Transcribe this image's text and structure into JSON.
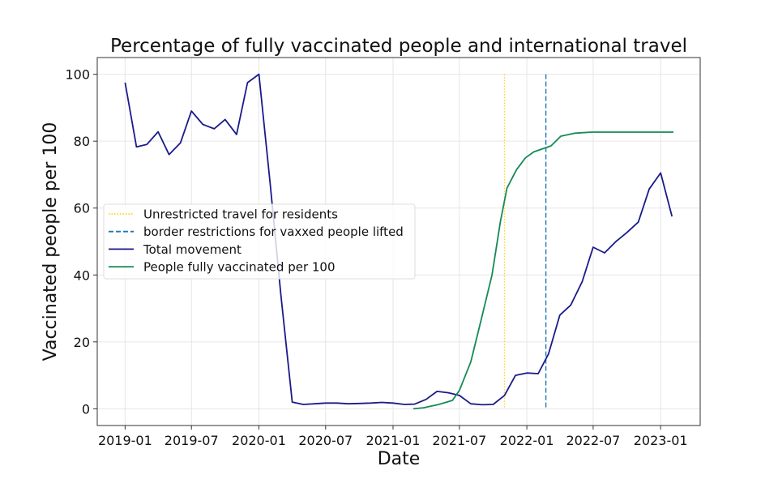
{
  "chart_data": {
    "type": "line",
    "title": "Percentage of fully vaccinated people and international travel",
    "xlabel": "Date",
    "ylabel": "Vaccinated people per 100",
    "xlim": [
      "2018-10-17",
      "2023-04-19"
    ],
    "ylim": [
      -5,
      105
    ],
    "grid": true,
    "legend_position": "center-left",
    "x_ticks": [
      "2019-01",
      "2019-07",
      "2020-01",
      "2020-07",
      "2021-01",
      "2021-07",
      "2022-01",
      "2022-07",
      "2023-01"
    ],
    "y_ticks": [
      0,
      20,
      40,
      60,
      80,
      100
    ],
    "vlines": [
      {
        "name": "Unrestricted travel for residents",
        "x": "2021-11-01",
        "color": "#ffd21f",
        "style": "dotted"
      },
      {
        "name": "border restrictions for vaxxed people lifted",
        "x": "2022-02-22",
        "color": "#1f77b4",
        "style": "dashed"
      }
    ],
    "series": [
      {
        "name": "Total movement",
        "color": "#1a1a8c",
        "x": [
          "2019-01-01",
          "2019-02-01",
          "2019-03-01",
          "2019-04-01",
          "2019-05-01",
          "2019-06-01",
          "2019-07-01",
          "2019-08-01",
          "2019-09-01",
          "2019-10-01",
          "2019-11-01",
          "2019-12-01",
          "2020-01-01",
          "2020-02-01",
          "2020-03-01",
          "2020-04-01",
          "2020-05-01",
          "2020-06-01",
          "2020-07-01",
          "2020-08-01",
          "2020-09-01",
          "2020-10-01",
          "2020-11-01",
          "2020-12-01",
          "2021-01-01",
          "2021-02-01",
          "2021-03-01",
          "2021-04-01",
          "2021-05-01",
          "2021-06-01",
          "2021-07-01",
          "2021-08-01",
          "2021-09-01",
          "2021-10-01",
          "2021-11-01",
          "2021-12-01",
          "2022-01-01",
          "2022-02-01",
          "2022-03-01",
          "2022-04-01",
          "2022-05-01",
          "2022-06-01",
          "2022-07-01",
          "2022-08-01",
          "2022-09-01",
          "2022-10-01",
          "2022-11-01",
          "2022-12-01",
          "2023-01-01",
          "2023-02-01"
        ],
        "y": [
          97.5,
          78.3,
          79,
          82.8,
          76,
          79.5,
          89,
          85,
          83.7,
          86.5,
          82,
          97.5,
          100,
          67,
          34,
          2,
          1.3,
          1.5,
          1.7,
          1.7,
          1.5,
          1.6,
          1.7,
          1.9,
          1.7,
          1.3,
          1.4,
          2.8,
          5.2,
          4.8,
          4.0,
          1.5,
          1.2,
          1.3,
          4.0,
          10,
          10.7,
          10.5,
          16.4,
          28,
          31,
          38,
          48.3,
          46.6,
          50,
          52.7,
          55.8,
          65.7,
          70.5,
          57.5
        ]
      },
      {
        "name": "People fully vaccinated per 100",
        "color": "#168a55",
        "x": [
          "2021-02-25",
          "2021-03-25",
          "2021-05-06",
          "2021-06-12",
          "2021-07-01",
          "2021-08-01",
          "2021-08-28",
          "2021-09-28",
          "2021-10-21",
          "2021-11-08",
          "2021-12-04",
          "2021-12-28",
          "2022-01-20",
          "2022-03-08",
          "2022-04-04",
          "2022-05-13",
          "2022-06-27",
          "2023-02-05"
        ],
        "y": [
          0,
          0.3,
          1.3,
          2.5,
          5.5,
          14,
          26,
          40,
          56,
          66,
          71.5,
          75,
          76.8,
          78.6,
          81.5,
          82.4,
          82.7,
          82.7
        ]
      }
    ]
  }
}
